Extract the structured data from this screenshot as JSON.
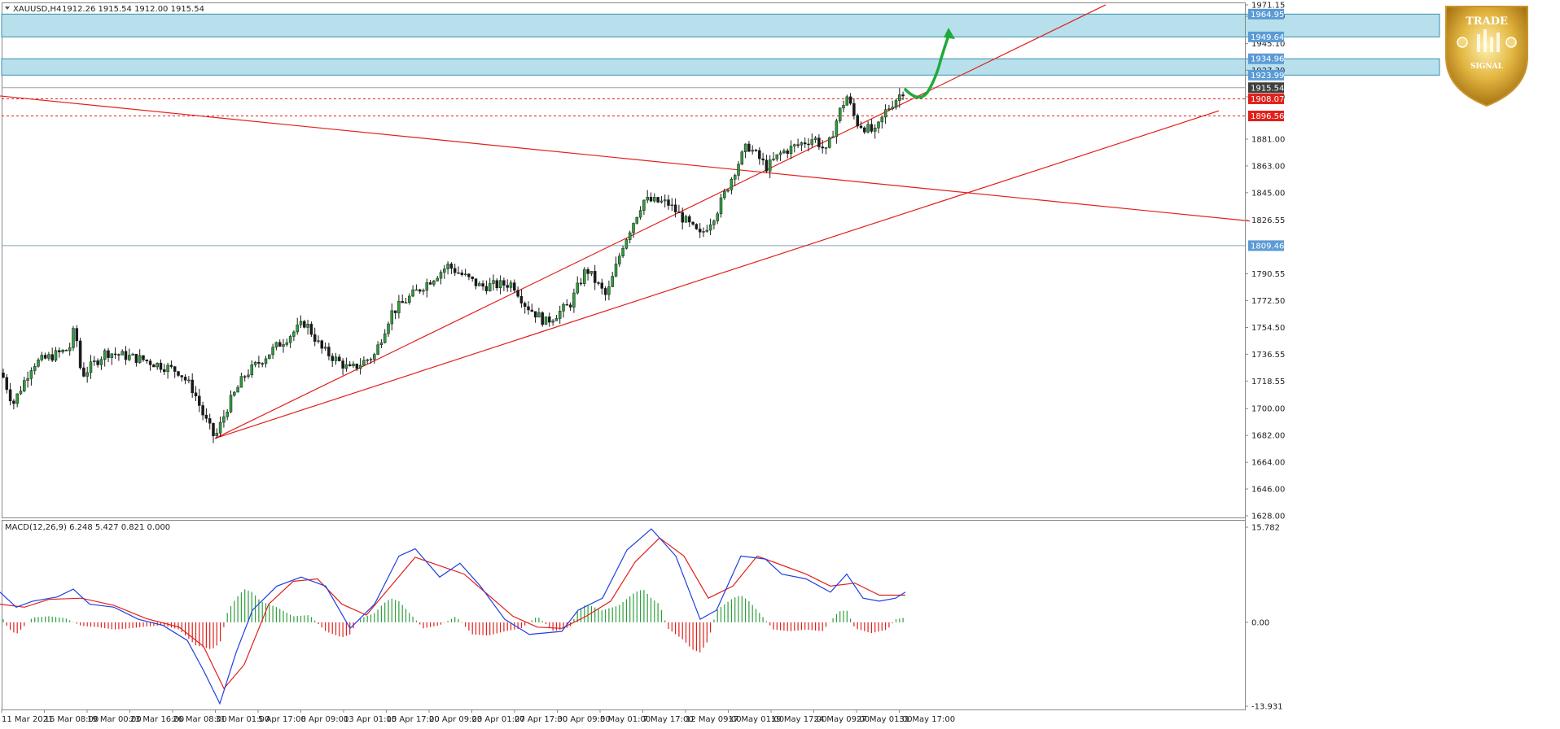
{
  "header": {
    "symbol_label": "XAUUSD,H4",
    "ohlc_label": "1912.26 1915.54 1912.00 1915.54"
  },
  "macd": {
    "label": "MACD(12,26,9) 6.248 5.427 0.821 0.000"
  },
  "badge": {
    "top_text": "TRADE",
    "bottom_text": "SIGNAL"
  },
  "price_tags": [
    {
      "text": "1964.95",
      "color": "#5b9bd5"
    },
    {
      "text": "1949.64",
      "color": "#5b9bd5"
    },
    {
      "text": "1934.96",
      "color": "#5b9bd5"
    },
    {
      "text": "1923.99",
      "color": "#5b9bd5"
    },
    {
      "text": "1915.54",
      "color": "#404040"
    },
    {
      "text": "1908.07",
      "color": "#e0201b"
    },
    {
      "text": "1896.56",
      "color": "#e0201b"
    },
    {
      "text": "1809.46",
      "color": "#5b9bd5"
    }
  ],
  "chart_data": [
    {
      "type": "candlestick",
      "symbol": "XAUUSD",
      "timeframe": "H4",
      "x_tick_labels": [
        "11 Mar 2021",
        "16 Mar 08:00",
        "19 Mar 00:00",
        "23 Mar 16:00",
        "26 Mar 08:00",
        "31 Mar 01:00",
        "5 Apr 17:00",
        "8 Apr 09:00",
        "13 Apr 01:00",
        "15 Apr 17:00",
        "20 Apr 09:00",
        "23 Apr 01:00",
        "27 Apr 17:00",
        "30 Apr 09:00",
        "5 May 01:00",
        "7 May 17:00",
        "12 May 09:00",
        "17 May 01:00",
        "19 May 17:00",
        "24 May 09:00",
        "27 May 01:00",
        "31 May 17:00"
      ],
      "y_tick_labels": [
        "1971.15",
        "1963.50",
        "1945.10",
        "1927.30",
        "1909.40",
        "1881.00",
        "1863.00",
        "1845.00",
        "1826.55",
        "1790.55",
        "1772.50",
        "1754.50",
        "1736.55",
        "1718.55",
        "1700.00",
        "1682.00",
        "1664.00",
        "1646.00",
        "1628.00"
      ],
      "ylim": [
        1628.0,
        1971.15
      ],
      "resistance_zones": [
        [
          1949.64,
          1964.95
        ],
        [
          1923.99,
          1934.96
        ]
      ],
      "horizontal_levels": [
        {
          "price": 1915.54,
          "style": "solid",
          "color": "#a0a0a0"
        },
        {
          "price": 1908.07,
          "style": "dashed",
          "color": "#e0201b"
        },
        {
          "price": 1896.56,
          "style": "dashed",
          "color": "#e0201b"
        },
        {
          "price": 1809.46,
          "style": "solid",
          "color": "#7fa7b7"
        }
      ],
      "trend_lines": [
        {
          "from": [
            0,
            1910.0
          ],
          "to": [
            1535,
            1826.0
          ],
          "color": "#e0201b"
        },
        {
          "from": [
            264,
            1680.0
          ],
          "to": [
            1358,
            1971.2
          ],
          "color": "#e0201b"
        },
        {
          "from": [
            264,
            1680.0
          ],
          "to": [
            1497,
            1900.0
          ],
          "color": "#e0201b"
        }
      ],
      "forecast_arrow": {
        "color": "#1eaa3c"
      },
      "keypoints": [
        [
          0,
          1727
        ],
        [
          16,
          1703
        ],
        [
          40,
          1730
        ],
        [
          85,
          1740
        ],
        [
          92,
          1755
        ],
        [
          100,
          1722
        ],
        [
          130,
          1738
        ],
        [
          175,
          1733
        ],
        [
          220,
          1725
        ],
        [
          238,
          1712
        ],
        [
          250,
          1695
        ],
        [
          264,
          1680
        ],
        [
          280,
          1702
        ],
        [
          300,
          1722
        ],
        [
          340,
          1742
        ],
        [
          375,
          1758
        ],
        [
          395,
          1740
        ],
        [
          430,
          1726
        ],
        [
          460,
          1736
        ],
        [
          480,
          1764
        ],
        [
          510,
          1778
        ],
        [
          550,
          1796
        ],
        [
          590,
          1782
        ],
        [
          630,
          1784
        ],
        [
          645,
          1770
        ],
        [
          670,
          1758
        ],
        [
          700,
          1770
        ],
        [
          720,
          1794
        ],
        [
          745,
          1775
        ],
        [
          765,
          1810
        ],
        [
          790,
          1840
        ],
        [
          820,
          1838
        ],
        [
          860,
          1816
        ],
        [
          880,
          1832
        ],
        [
          905,
          1863
        ],
        [
          918,
          1877
        ],
        [
          942,
          1862
        ],
        [
          960,
          1872
        ],
        [
          1000,
          1882
        ],
        [
          1015,
          1872
        ],
        [
          1030,
          1898
        ],
        [
          1040,
          1910
        ],
        [
          1052,
          1892
        ],
        [
          1075,
          1885
        ],
        [
          1088,
          1900
        ],
        [
          1110,
          1914
        ]
      ]
    },
    {
      "type": "line",
      "title": "MACD(12,26,9)",
      "y_tick_labels": [
        "15.782",
        "0.00",
        "-13.931"
      ],
      "ylim": [
        -13.931,
        15.782
      ],
      "series": [
        {
          "name": "MACD",
          "color": "#1f3fe0",
          "points": [
            [
              0,
              5
            ],
            [
              20,
              2.5
            ],
            [
              40,
              3.5
            ],
            [
              70,
              4.2
            ],
            [
              90,
              5.5
            ],
            [
              110,
              3
            ],
            [
              140,
              2.5
            ],
            [
              170,
              0.5
            ],
            [
              200,
              -0.5
            ],
            [
              230,
              -3
            ],
            [
              250,
              -8
            ],
            [
              270,
              -13.5
            ],
            [
              290,
              -5
            ],
            [
              310,
              2
            ],
            [
              340,
              6
            ],
            [
              370,
              7.5
            ],
            [
              400,
              6
            ],
            [
              430,
              -1
            ],
            [
              460,
              3
            ],
            [
              490,
              11
            ],
            [
              510,
              12.2
            ],
            [
              540,
              7.5
            ],
            [
              565,
              9.8
            ],
            [
              590,
              6
            ],
            [
              620,
              0.5
            ],
            [
              650,
              -2
            ],
            [
              690,
              -1.5
            ],
            [
              710,
              2
            ],
            [
              740,
              4
            ],
            [
              770,
              12
            ],
            [
              800,
              15.5
            ],
            [
              830,
              11
            ],
            [
              860,
              0.5
            ],
            [
              880,
              2
            ],
            [
              910,
              11
            ],
            [
              940,
              10.5
            ],
            [
              960,
              8
            ],
            [
              990,
              7.2
            ],
            [
              1020,
              5
            ],
            [
              1040,
              8
            ],
            [
              1060,
              4
            ],
            [
              1080,
              3.5
            ],
            [
              1100,
              4
            ],
            [
              1112,
              5
            ]
          ]
        },
        {
          "name": "Signal",
          "color": "#e0201b",
          "points": [
            [
              0,
              3
            ],
            [
              30,
              2.5
            ],
            [
              60,
              3.8
            ],
            [
              100,
              4
            ],
            [
              140,
              2.8
            ],
            [
              180,
              0.6
            ],
            [
              220,
              -0.8
            ],
            [
              250,
              -4
            ],
            [
              275,
              -11
            ],
            [
              300,
              -7
            ],
            [
              330,
              3
            ],
            [
              360,
              6.8
            ],
            [
              390,
              7.2
            ],
            [
              420,
              3
            ],
            [
              450,
              1.2
            ],
            [
              480,
              6
            ],
            [
              510,
              10.8
            ],
            [
              540,
              9.4
            ],
            [
              570,
              8
            ],
            [
              600,
              4.5
            ],
            [
              630,
              1
            ],
            [
              660,
              -0.8
            ],
            [
              690,
              -1
            ],
            [
              720,
              1
            ],
            [
              750,
              3.5
            ],
            [
              780,
              10
            ],
            [
              810,
              14
            ],
            [
              840,
              11
            ],
            [
              870,
              4
            ],
            [
              900,
              6
            ],
            [
              930,
              11
            ],
            [
              960,
              9.5
            ],
            [
              990,
              8
            ],
            [
              1020,
              6
            ],
            [
              1050,
              6.5
            ],
            [
              1080,
              4.5
            ],
            [
              1112,
              4.5
            ]
          ]
        }
      ],
      "histogram": [
        [
          0,
          1.5
        ],
        [
          10,
          -1
        ],
        [
          20,
          -2
        ],
        [
          40,
          0.8
        ],
        [
          60,
          1
        ],
        [
          80,
          0.7
        ],
        [
          100,
          -0.6
        ],
        [
          120,
          -0.8
        ],
        [
          140,
          -1.2
        ],
        [
          160,
          -1
        ],
        [
          180,
          -0.7
        ],
        [
          200,
          -0.5
        ],
        [
          220,
          -1.2
        ],
        [
          240,
          -3.8
        ],
        [
          260,
          -4.5
        ],
        [
          270,
          -3.5
        ],
        [
          280,
          2
        ],
        [
          290,
          4
        ],
        [
          300,
          5.5
        ],
        [
          310,
          5
        ],
        [
          320,
          3.5
        ],
        [
          340,
          2.5
        ],
        [
          360,
          1
        ],
        [
          380,
          1.2
        ],
        [
          400,
          -1.5
        ],
        [
          420,
          -2.5
        ],
        [
          430,
          -2
        ],
        [
          440,
          0.5
        ],
        [
          460,
          1.5
        ],
        [
          470,
          3
        ],
        [
          480,
          4
        ],
        [
          490,
          3.5
        ],
        [
          500,
          2
        ],
        [
          520,
          -1
        ],
        [
          540,
          -0.5
        ],
        [
          560,
          1
        ],
        [
          580,
          -2
        ],
        [
          600,
          -2.2
        ],
        [
          620,
          -1.5
        ],
        [
          640,
          -1
        ],
        [
          660,
          1
        ],
        [
          680,
          -1.5
        ],
        [
          700,
          -0.8
        ],
        [
          710,
          2
        ],
        [
          720,
          3
        ],
        [
          740,
          2
        ],
        [
          760,
          2.8
        ],
        [
          780,
          5
        ],
        [
          790,
          5.5
        ],
        [
          800,
          4
        ],
        [
          810,
          3
        ],
        [
          820,
          -1
        ],
        [
          840,
          -3
        ],
        [
          850,
          -4.5
        ],
        [
          860,
          -5
        ],
        [
          870,
          -3
        ],
        [
          880,
          2
        ],
        [
          900,
          4
        ],
        [
          910,
          4.5
        ],
        [
          920,
          3.5
        ],
        [
          930,
          2
        ],
        [
          950,
          -1.2
        ],
        [
          970,
          -1.5
        ],
        [
          990,
          -1.2
        ],
        [
          1010,
          -1.5
        ],
        [
          1030,
          1.8
        ],
        [
          1040,
          2
        ],
        [
          1050,
          -1
        ],
        [
          1070,
          -1.8
        ],
        [
          1090,
          -1.2
        ],
        [
          1100,
          0.5
        ],
        [
          1112,
          0.8
        ]
      ]
    }
  ]
}
